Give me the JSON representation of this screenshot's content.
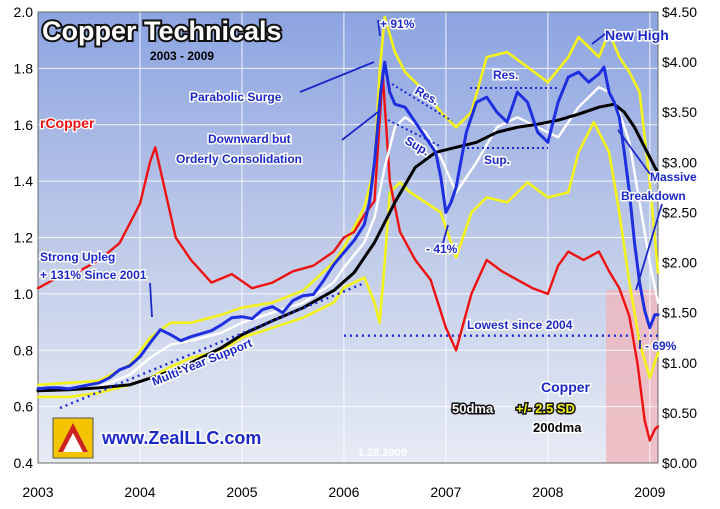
{
  "chart_data": {
    "type": "line",
    "title": "Copper Technicals",
    "subtitle": "2003 - 2009",
    "date_stamp": "1.28.2009",
    "website": "www.ZealLLC.com",
    "x_ticks": [
      "2003",
      "2004",
      "2005",
      "2006",
      "2007",
      "2008",
      "2009"
    ],
    "left_axis": {
      "label": "rCopper",
      "ylim": [
        0.4,
        2.0
      ],
      "ticks": [
        "0.4",
        "0.6",
        "0.8",
        "1.0",
        "1.2",
        "1.4",
        "1.6",
        "1.8",
        "2.0"
      ]
    },
    "right_axis": {
      "ylim": [
        0.0,
        4.5
      ],
      "ticks": [
        "$0.00",
        "$0.50",
        "$1.00",
        "$1.50",
        "$2.00",
        "$2.50",
        "$3.00",
        "$3.50",
        "$4.00",
        "$4.50"
      ]
    },
    "legend": {
      "copper": "Copper",
      "dma50": "50dma",
      "bands": "+/- 2.5 SD",
      "dma200": "200dma"
    },
    "colors": {
      "copper": "#1e2fe0",
      "rcopper": "#ee1111",
      "dma50": "#ffffff",
      "bands": "#f3f31a",
      "dma200": "#000000",
      "annotation": "#1c28c8",
      "support": "#1c28d8"
    },
    "annotations": {
      "surge_pct": "+ 91%",
      "new_high": "New High",
      "parabolic": "Parabolic Surge",
      "res1": "Res.",
      "res2": "Res.",
      "sup1": "Sup.",
      "sup2": "Sup.",
      "consol_1": "Downward but",
      "consol_2": "Orderly Consolidation",
      "drop41": "- 41%",
      "massive_1": "Massive",
      "massive_2": "Breakdown",
      "upleg_1": "Strong Upleg",
      "upleg_2": "+ 131% Since 2001",
      "multi_year": "Multi-Year Support",
      "lowest": "Lowest since 2004",
      "drop69": "- 69%"
    },
    "series": [
      {
        "name": "Copper",
        "axis": "right",
        "x": [
          2003.0,
          2003.1,
          2003.2,
          2003.3,
          2003.4,
          2003.5,
          2003.6,
          2003.7,
          2003.8,
          2003.9,
          2004.0,
          2004.1,
          2004.2,
          2004.3,
          2004.4,
          2004.5,
          2004.6,
          2004.7,
          2004.8,
          2004.9,
          2005.0,
          2005.1,
          2005.2,
          2005.3,
          2005.4,
          2005.5,
          2005.6,
          2005.7,
          2005.8,
          2005.9,
          2006.0,
          2006.1,
          2006.2,
          2006.25,
          2006.3,
          2006.36,
          2006.4,
          2006.45,
          2006.5,
          2006.6,
          2006.7,
          2006.8,
          2006.9,
          2006.95,
          2007.0,
          2007.05,
          2007.1,
          2007.2,
          2007.3,
          2007.4,
          2007.5,
          2007.6,
          2007.7,
          2007.8,
          2007.9,
          2008.0,
          2008.1,
          2008.2,
          2008.3,
          2008.4,
          2008.5,
          2008.55,
          2008.6,
          2008.65,
          2008.7,
          2008.75,
          2008.8,
          2008.85,
          2008.9,
          2008.95,
          2009.0,
          2009.05,
          2009.08
        ],
        "y": [
          0.74,
          0.75,
          0.75,
          0.74,
          0.76,
          0.78,
          0.8,
          0.85,
          0.93,
          0.97,
          1.06,
          1.2,
          1.33,
          1.28,
          1.22,
          1.26,
          1.29,
          1.32,
          1.38,
          1.45,
          1.46,
          1.44,
          1.53,
          1.56,
          1.5,
          1.62,
          1.67,
          1.68,
          1.82,
          1.98,
          2.1,
          2.22,
          2.38,
          2.6,
          3.0,
          3.7,
          4.0,
          3.7,
          3.58,
          3.55,
          3.4,
          3.25,
          3.1,
          2.85,
          2.5,
          2.6,
          2.75,
          3.3,
          3.6,
          3.65,
          3.5,
          3.4,
          3.7,
          3.6,
          3.3,
          3.2,
          3.6,
          3.85,
          3.9,
          3.8,
          3.88,
          3.95,
          3.7,
          3.6,
          3.45,
          3.1,
          2.7,
          2.2,
          1.8,
          1.52,
          1.35,
          1.48,
          1.48
        ]
      },
      {
        "name": "rCopper",
        "axis": "left",
        "x": [
          2003.0,
          2003.2,
          2003.4,
          2003.6,
          2003.8,
          2004.0,
          2004.1,
          2004.15,
          2004.25,
          2004.35,
          2004.5,
          2004.7,
          2004.9,
          2005.1,
          2005.3,
          2005.5,
          2005.7,
          2005.9,
          2006.0,
          2006.1,
          2006.2,
          2006.3,
          2006.38,
          2006.45,
          2006.55,
          2006.7,
          2006.85,
          2007.0,
          2007.1,
          2007.25,
          2007.4,
          2007.55,
          2007.7,
          2007.85,
          2008.0,
          2008.1,
          2008.2,
          2008.35,
          2008.5,
          2008.6,
          2008.7,
          2008.8,
          2008.88,
          2008.95,
          2009.0,
          2009.05,
          2009.08
        ],
        "y": [
          1.02,
          1.06,
          1.08,
          1.12,
          1.18,
          1.32,
          1.47,
          1.52,
          1.36,
          1.2,
          1.12,
          1.04,
          1.07,
          1.02,
          1.04,
          1.08,
          1.1,
          1.15,
          1.2,
          1.22,
          1.28,
          1.33,
          1.78,
          1.4,
          1.22,
          1.12,
          1.05,
          0.88,
          0.8,
          1.0,
          1.12,
          1.08,
          1.05,
          1.02,
          1.0,
          1.1,
          1.15,
          1.12,
          1.15,
          1.08,
          1.02,
          0.92,
          0.75,
          0.55,
          0.48,
          0.52,
          0.53
        ]
      },
      {
        "name": "50dma",
        "axis": "right",
        "x": [
          2003.0,
          2003.3,
          2003.6,
          2003.9,
          2004.1,
          2004.3,
          2004.5,
          2004.8,
          2005.0,
          2005.3,
          2005.6,
          2005.9,
          2006.0,
          2006.2,
          2006.3,
          2006.4,
          2006.5,
          2006.6,
          2006.8,
          2006.95,
          2007.1,
          2007.3,
          2007.5,
          2007.7,
          2007.9,
          2008.1,
          2008.3,
          2008.5,
          2008.6,
          2008.7,
          2008.8,
          2008.9,
          2009.0,
          2009.08
        ],
        "y": [
          0.72,
          0.73,
          0.76,
          0.88,
          1.05,
          1.18,
          1.22,
          1.3,
          1.4,
          1.5,
          1.6,
          1.8,
          1.95,
          2.2,
          2.45,
          2.95,
          3.35,
          3.45,
          3.3,
          3.05,
          2.7,
          3.0,
          3.35,
          3.45,
          3.35,
          3.25,
          3.55,
          3.75,
          3.7,
          3.5,
          3.2,
          2.6,
          2.0,
          1.6
        ]
      },
      {
        "name": "Upper band",
        "axis": "right",
        "x": [
          2003.0,
          2003.3,
          2003.6,
          2003.9,
          2004.1,
          2004.3,
          2004.5,
          2004.8,
          2005.0,
          2005.3,
          2005.6,
          2005.9,
          2006.0,
          2006.2,
          2006.3,
          2006.35,
          2006.4,
          2006.5,
          2006.6,
          2006.8,
          2006.95,
          2007.1,
          2007.25,
          2007.4,
          2007.6,
          2007.8,
          2008.0,
          2008.2,
          2008.3,
          2008.4,
          2008.5,
          2008.6,
          2008.7,
          2008.8,
          2008.9,
          2009.0,
          2009.08
        ],
        "y": [
          0.78,
          0.8,
          0.82,
          0.98,
          1.25,
          1.4,
          1.4,
          1.48,
          1.55,
          1.6,
          1.72,
          2.0,
          2.15,
          2.55,
          2.95,
          3.9,
          4.45,
          4.1,
          3.9,
          3.7,
          3.5,
          3.35,
          3.5,
          4.05,
          4.1,
          3.95,
          3.8,
          4.05,
          4.25,
          4.15,
          4.05,
          4.3,
          4.05,
          3.9,
          3.7,
          2.8,
          1.9
        ]
      },
      {
        "name": "Lower band",
        "axis": "right",
        "x": [
          2003.0,
          2003.3,
          2003.6,
          2003.9,
          2004.1,
          2004.3,
          2004.5,
          2004.8,
          2005.0,
          2005.3,
          2005.6,
          2005.9,
          2006.0,
          2006.2,
          2006.3,
          2006.35,
          2006.4,
          2006.45,
          2006.55,
          2006.65,
          2006.8,
          2006.95,
          2007.1,
          2007.25,
          2007.4,
          2007.6,
          2007.8,
          2008.0,
          2008.2,
          2008.3,
          2008.45,
          2008.6,
          2008.7,
          2008.8,
          2008.9,
          2009.0,
          2009.08
        ],
        "y": [
          0.66,
          0.66,
          0.7,
          0.78,
          0.85,
          0.96,
          1.05,
          1.12,
          1.25,
          1.35,
          1.45,
          1.6,
          1.75,
          1.85,
          1.6,
          1.4,
          2.0,
          2.7,
          2.8,
          2.7,
          2.6,
          2.5,
          2.05,
          2.5,
          2.65,
          2.6,
          2.8,
          2.65,
          2.7,
          3.1,
          3.4,
          3.1,
          2.5,
          1.8,
          1.2,
          0.85,
          1.1
        ]
      },
      {
        "name": "200dma",
        "axis": "right",
        "x": [
          2003.0,
          2003.3,
          2003.6,
          2003.9,
          2004.2,
          2004.5,
          2004.8,
          2005.0,
          2005.3,
          2005.6,
          2005.9,
          2006.1,
          2006.3,
          2006.5,
          2006.7,
          2006.9,
          2007.1,
          2007.3,
          2007.5,
          2007.7,
          2007.9,
          2008.1,
          2008.3,
          2008.5,
          2008.65,
          2008.75,
          2008.85,
          2008.95,
          2009.05,
          2009.08
        ],
        "y": [
          0.72,
          0.73,
          0.75,
          0.78,
          0.88,
          1.0,
          1.15,
          1.28,
          1.42,
          1.55,
          1.72,
          1.9,
          2.2,
          2.6,
          2.95,
          3.1,
          3.15,
          3.2,
          3.3,
          3.35,
          3.38,
          3.42,
          3.48,
          3.55,
          3.58,
          3.5,
          3.35,
          3.15,
          2.95,
          2.9
        ]
      }
    ],
    "reference_lines": [
      {
        "label": "Lowest since 2004",
        "axis": "right",
        "value": 1.27,
        "x_from": 2006.0,
        "x_to": 2009.08
      }
    ]
  }
}
